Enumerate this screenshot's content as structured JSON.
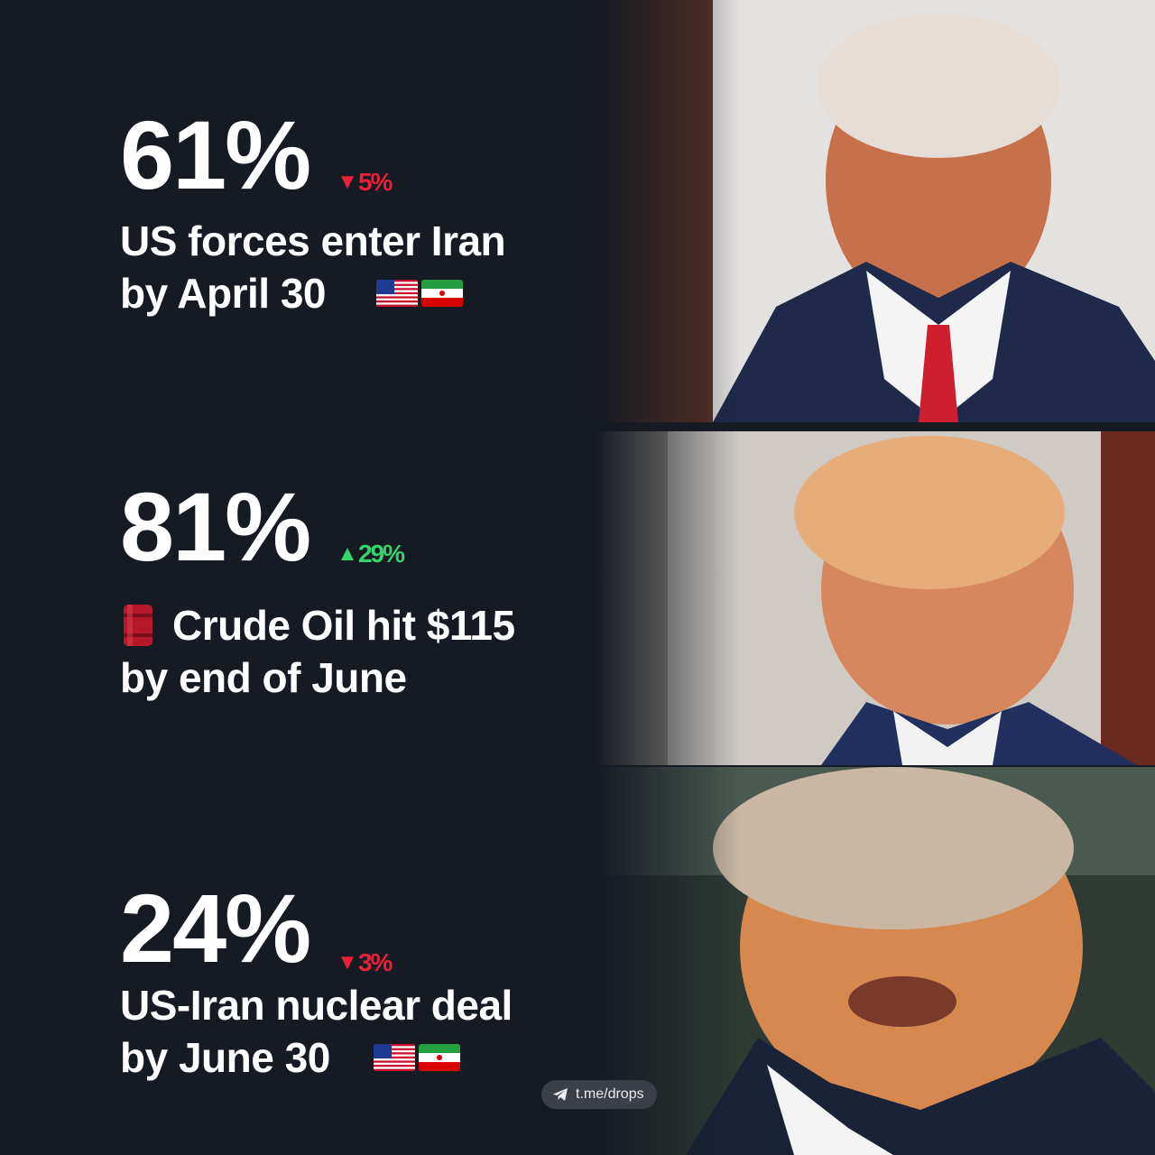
{
  "items": [
    {
      "percent": "61%",
      "change": "5%",
      "direction": "down",
      "line1": "US forces enter Iran",
      "line2": "by April 30",
      "flags": [
        "us-flag-icon",
        "iran-flag-icon"
      ]
    },
    {
      "percent": "81%",
      "change": "29%",
      "direction": "up",
      "line1": "Crude Oil hit $115",
      "line2": "by end of June",
      "icon": "oil-barrel-icon"
    },
    {
      "percent": "24%",
      "change": "3%",
      "direction": "down",
      "line1": "US-Iran nuclear deal",
      "line2": "by June 30",
      "flags": [
        "us-flag-icon",
        "iran-flag-icon"
      ]
    }
  ],
  "arrows": {
    "down": "▼",
    "up": "▲"
  },
  "badge": {
    "text": "t.me/drops",
    "icon": "telegram-icon"
  },
  "colors": {
    "background": "#151a23",
    "down": "#e8213a",
    "up": "#35d46a",
    "text": "#ffffff",
    "badge_bg": "#3a3f48"
  }
}
